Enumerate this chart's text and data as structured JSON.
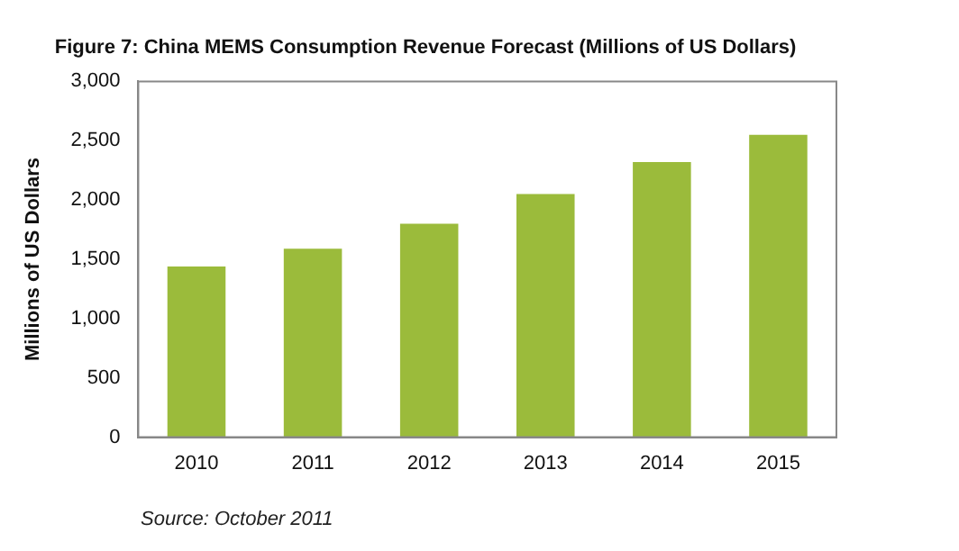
{
  "chart_data": {
    "type": "bar",
    "title": "Figure 7: China MEMS Consumption Revenue Forecast (Millions of US Dollars)",
    "ylabel": "Millions of US Dollars",
    "categories": [
      "2010",
      "2011",
      "2012",
      "2013",
      "2014",
      "2015"
    ],
    "values": [
      1440,
      1590,
      1800,
      2050,
      2320,
      2550
    ],
    "color": "#9bbb3b",
    "ylim": [
      0,
      3000
    ],
    "yticks": [
      {
        "value": 0,
        "label": "0"
      },
      {
        "value": 500,
        "label": "500"
      },
      {
        "value": 1000,
        "label": "1,000"
      },
      {
        "value": 1500,
        "label": "1,500"
      },
      {
        "value": 2000,
        "label": "2,000"
      },
      {
        "value": 2500,
        "label": "2,500"
      },
      {
        "value": 3000,
        "label": "3,000"
      }
    ],
    "grid": false,
    "annotations": [
      "Source: October 2011"
    ]
  }
}
